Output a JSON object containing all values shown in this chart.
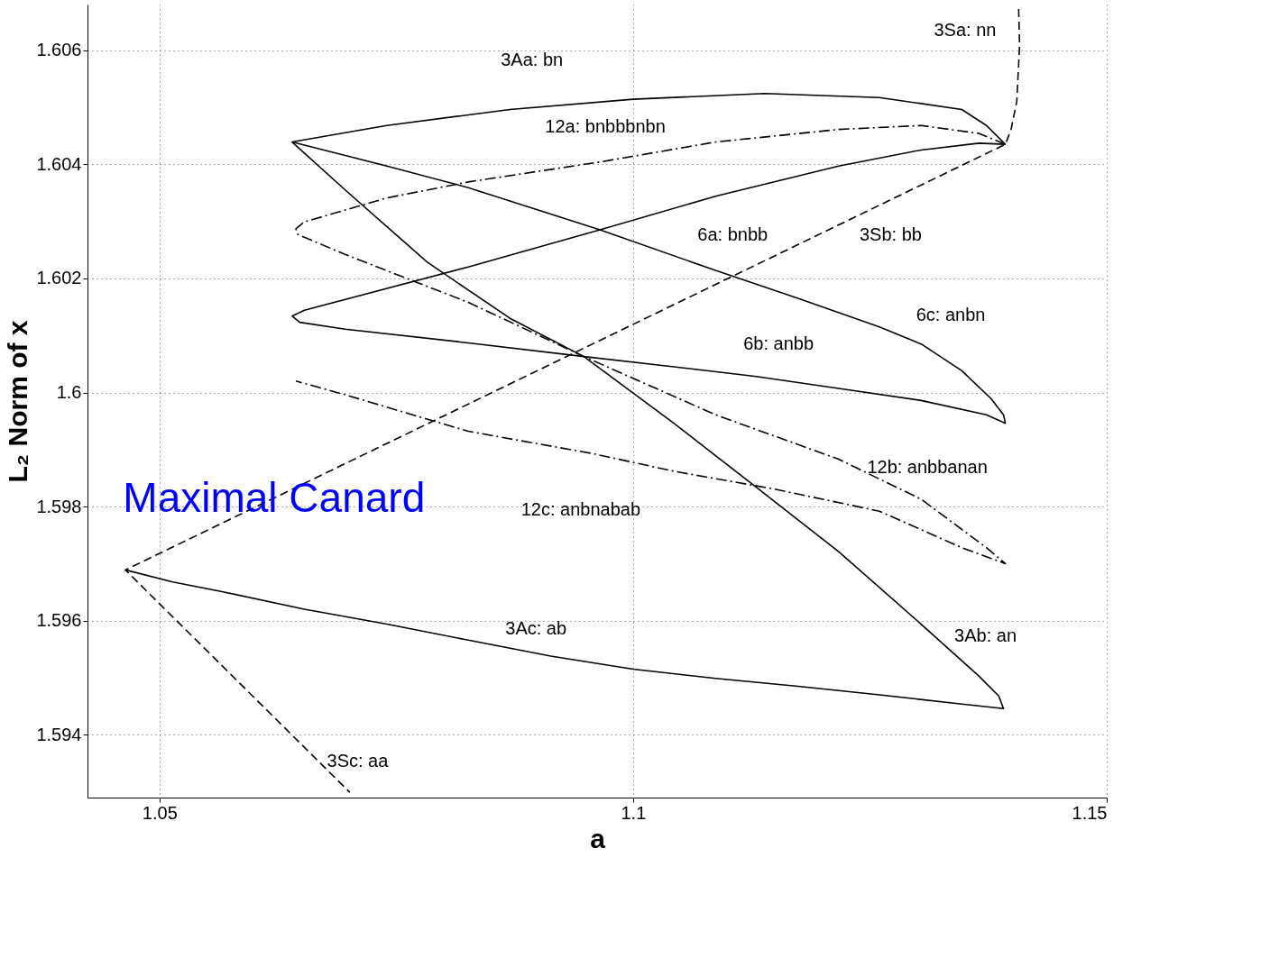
{
  "chart_data": {
    "type": "line",
    "xlabel": "a",
    "ylabel": "L₂ Norm of x",
    "xlim": [
      1.0424,
      1.15
    ],
    "ylim": [
      1.5929,
      1.6068
    ],
    "xticks": [
      1.05,
      1.1,
      1.15
    ],
    "yticks": [
      1.594,
      1.596,
      1.598,
      1.6,
      1.602,
      1.604,
      1.606
    ],
    "grid": true,
    "series": [
      {
        "color": "#000000",
        "line_style": "solid",
        "x": [
          1.1393,
          1.1373,
          1.1347,
          1.126,
          1.1139,
          1.1,
          1.087,
          1.074,
          1.064,
          1.0696,
          1.0783,
          1.087,
          1.0948,
          1.1043,
          1.113,
          1.1217,
          1.1304,
          1.1365,
          1.1386,
          1.1391,
          1.1347,
          1.126,
          1.1174,
          1.1087,
          1.1,
          1.0913,
          1.0826,
          1.074,
          1.0653,
          1.0566,
          1.0514,
          1.0464
        ],
        "values": [
          1.60435,
          1.60468,
          1.60496,
          1.60517,
          1.60524,
          1.60514,
          1.60496,
          1.60468,
          1.60439,
          1.60355,
          1.60228,
          1.6013,
          1.60063,
          1.59946,
          1.59834,
          1.59721,
          1.59594,
          1.59503,
          1.59468,
          1.59446,
          1.59454,
          1.5947,
          1.59485,
          1.59499,
          1.59515,
          1.59538,
          1.59566,
          1.59594,
          1.5962,
          1.59651,
          1.59668,
          1.59689
        ]
      },
      {
        "color": "#000000",
        "line_style": "dashed",
        "x": [
          1.1407,
          1.1408,
          1.1405,
          1.1399,
          1.1393,
          1.0464,
          1.0701
        ],
        "values": [
          1.60672,
          1.60608,
          1.6051,
          1.60461,
          1.60435,
          1.59689,
          1.59299
        ]
      },
      {
        "color": "#000000",
        "line_style": "solid",
        "x": [
          1.064,
          1.074,
          1.0826,
          1.0965,
          1.1087,
          1.1174,
          1.126,
          1.1304,
          1.1347,
          1.1378,
          1.1391,
          1.1393,
          1.1373,
          1.1304,
          1.1217,
          1.113,
          1.1043,
          1.0948,
          1.0826,
          1.0696,
          1.0648,
          1.064,
          1.0653,
          1.0826,
          1.0965,
          1.1087,
          1.1217,
          1.1304,
          1.1365,
          1.1393
        ],
        "values": [
          1.60439,
          1.60397,
          1.60359,
          1.60285,
          1.60214,
          1.60165,
          1.60115,
          1.60085,
          1.60038,
          1.59989,
          1.59961,
          1.59946,
          1.59961,
          1.59986,
          1.60007,
          1.60028,
          1.60045,
          1.60063,
          1.60087,
          1.60111,
          1.60123,
          1.60134,
          1.60144,
          1.6022,
          1.60285,
          1.60344,
          1.60397,
          1.60425,
          1.60437,
          1.60435
        ]
      },
      {
        "color": "#000000",
        "line_style": "dashdot",
        "x": [
          1.1393,
          1.1365,
          1.1304,
          1.1217,
          1.1087,
          1.0965,
          1.0826,
          1.074,
          1.0653,
          1.0644,
          1.0646,
          1.0696,
          1.0826,
          1.0948,
          1.1087,
          1.1217,
          1.1304,
          1.1373,
          1.1393,
          1.1347,
          1.126,
          1.1148,
          1.1043,
          1.0957,
          1.0826,
          1.0696,
          1.0644
        ],
        "values": [
          1.60435,
          1.60454,
          1.60468,
          1.60461,
          1.60439,
          1.60404,
          1.60369,
          1.60341,
          1.60299,
          1.60287,
          1.60277,
          1.60242,
          1.60158,
          1.60063,
          1.59961,
          1.59883,
          1.59813,
          1.59728,
          1.597,
          1.59728,
          1.59792,
          1.59831,
          1.59862,
          1.59893,
          1.59932,
          1.59996,
          1.6002
        ]
      }
    ],
    "annotations": [
      "3Sa: nn",
      "3Aa: bn",
      "12a: bnbbbnbn",
      "6a: bnbb",
      "3Sb: bb",
      "6c: anbn",
      "6b: anbb",
      "12b: anbbanan",
      "12c: anbnabab",
      "3Ab: an",
      "3Ac: ab",
      "3Sc: aa",
      "Maximal Canard"
    ]
  }
}
